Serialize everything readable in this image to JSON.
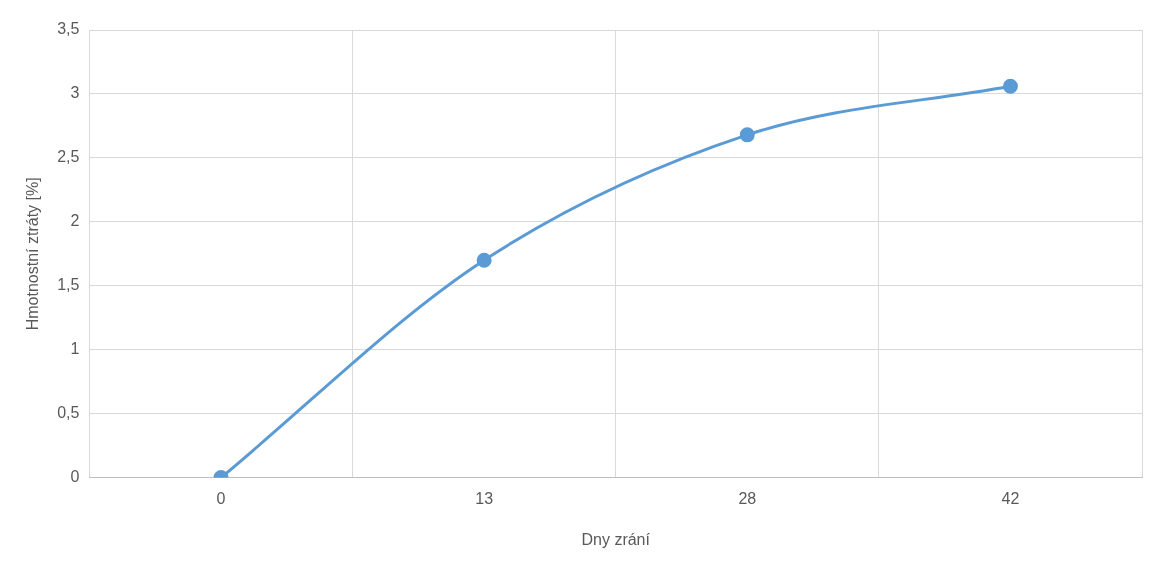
{
  "chart_data": {
    "type": "line",
    "xlabel": "Dny zrání",
    "ylabel": "Hmotnostní ztráty [%]",
    "categories": [
      "0",
      "13",
      "28",
      "42"
    ],
    "series": [
      {
        "color": "#5b9bd5",
        "values": [
          0,
          1.7,
          2.68,
          3.06
        ]
      }
    ],
    "ylim": [
      0,
      3.5
    ],
    "yticks": [
      0,
      {
        "value": 0.5,
        "label": "0,5"
      },
      1,
      {
        "value": 1.5,
        "label": "1,5"
      },
      2,
      {
        "value": 2.5,
        "label": "2,5"
      },
      3,
      {
        "value": 3.5,
        "label": "3,5"
      }
    ],
    "grid": true,
    "legend": false,
    "marker": "circle",
    "line_style": "solid"
  }
}
